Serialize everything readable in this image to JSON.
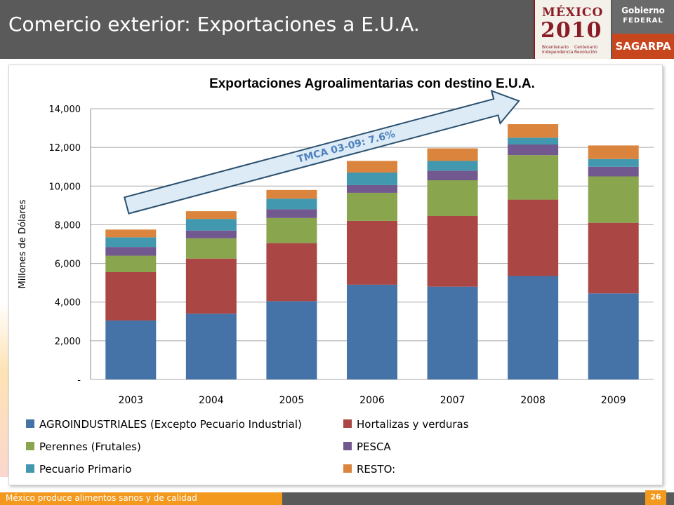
{
  "header": {
    "title": "Comercio exterior: Exportaciones a E.U.A.",
    "logo_mexico_line1": "MÉXICO",
    "logo_mexico_line2": "2010",
    "logo_mexico_sub1": "Bicentenario Independencia",
    "logo_mexico_sub2": "Centenario Revolución",
    "logo_gobierno_line1": "Gobierno",
    "logo_gobierno_line2": "FEDERAL",
    "logo_sagarpa": "SAGARPA"
  },
  "footer": {
    "text": "México produce alimentos sanos y de calidad",
    "page_number": "26"
  },
  "chart_data": {
    "type": "bar",
    "stacked": true,
    "title": "Exportaciones Agroalimentarias con destino E.U.A.",
    "ylabel": "Millones de Dólares",
    "xlabel": "",
    "ylim": [
      0,
      14000
    ],
    "yticks": [
      0,
      2000,
      4000,
      6000,
      8000,
      10000,
      12000,
      14000
    ],
    "ytick_labels": [
      "-",
      "2,000",
      "4,000",
      "6,000",
      "8,000",
      "10,000",
      "12,000",
      "14,000"
    ],
    "grid": true,
    "legend_position": "bottom",
    "categories": [
      "2003",
      "2004",
      "2005",
      "2006",
      "2007",
      "2008",
      "2009"
    ],
    "series": [
      {
        "name": "AGROINDUSTRIALES (Excepto Pecuario Industrial)",
        "color": "#4572a7",
        "values": [
          3050,
          3400,
          4050,
          4900,
          4800,
          5350,
          4450
        ]
      },
      {
        "name": "Hortalizas y verduras",
        "color": "#aa4643",
        "values": [
          2500,
          2850,
          3000,
          3300,
          3650,
          3950,
          3650
        ]
      },
      {
        "name": "Perennes (Frutales)",
        "color": "#89a54e",
        "values": [
          850,
          1050,
          1300,
          1450,
          1850,
          2300,
          2400
        ]
      },
      {
        "name": "PESCA",
        "color": "#71588f",
        "values": [
          450,
          400,
          450,
          400,
          500,
          550,
          500
        ]
      },
      {
        "name": "Pecuario Primario",
        "color": "#4198af",
        "values": [
          500,
          600,
          550,
          650,
          500,
          350,
          400
        ]
      },
      {
        "name": "RESTO:",
        "color": "#db843d",
        "values": [
          400,
          400,
          450,
          600,
          650,
          700,
          700
        ]
      }
    ],
    "annotation": {
      "text": "TMCA 03-09: 7.6%",
      "from_category": "2003",
      "from_value": 9000,
      "to_category": "2008",
      "to_value": 14400
    }
  }
}
